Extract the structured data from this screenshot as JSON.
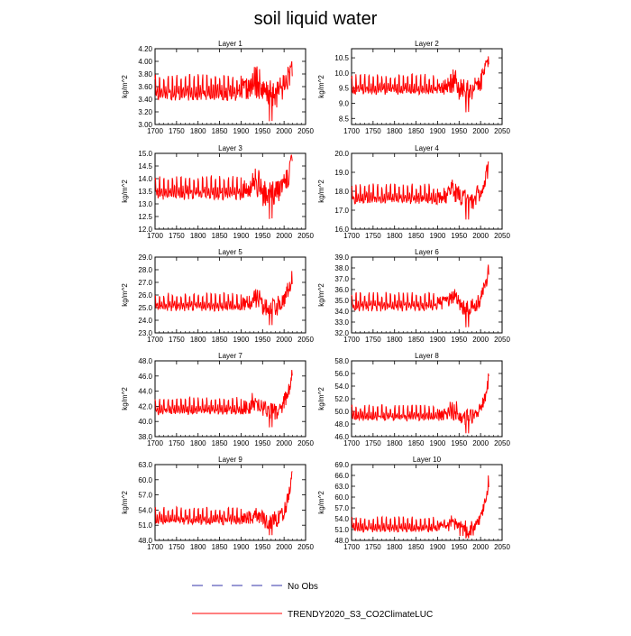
{
  "title": "soil liquid water",
  "legend": [
    {
      "label": "No Obs",
      "color": "#3333aa",
      "style": "dashed"
    },
    {
      "label": "TRENDY2020_S3_CO2ClimateLUC",
      "color": "#ff0000",
      "style": "solid"
    }
  ],
  "colors": {
    "series": "#ff0000",
    "axis": "#000000"
  },
  "chart_data": [
    {
      "type": "line",
      "title": "Layer 1",
      "ylabel": "kg/m^2",
      "xlim": [
        1700,
        2050
      ],
      "xticks": [
        1700,
        1750,
        1800,
        1850,
        1900,
        1950,
        2000,
        2050
      ],
      "ylim": [
        3.0,
        4.2
      ],
      "yticks": [
        "3.00",
        "3.20",
        "3.40",
        "3.60",
        "3.80",
        "4.00",
        "4.20"
      ],
      "series": [
        {
          "name": "TRENDY2020_S3_CO2ClimateLUC",
          "base": 3.55,
          "amp": 0.22,
          "recent_rise": 0.45,
          "min_dip": 3.05
        }
      ]
    },
    {
      "type": "line",
      "title": "Layer 2",
      "ylabel": "kg/m^2",
      "xlim": [
        1700,
        2050
      ],
      "xticks": [
        1700,
        1750,
        1800,
        1850,
        1900,
        1950,
        2000,
        2050
      ],
      "ylim": [
        8.3,
        10.8
      ],
      "yticks": [
        "8.5",
        "9.0",
        "9.5",
        "10.0",
        "10.5"
      ],
      "series": [
        {
          "name": "TRENDY2020_S3_CO2ClimateLUC",
          "base": 9.55,
          "amp": 0.35,
          "recent_rise": 1.0,
          "min_dip": 8.7
        }
      ]
    },
    {
      "type": "line",
      "title": "Layer 3",
      "ylabel": "kg/m^2",
      "xlim": [
        1700,
        2050
      ],
      "xticks": [
        1700,
        1750,
        1800,
        1850,
        1900,
        1950,
        2000,
        2050
      ],
      "ylim": [
        12.0,
        15.0
      ],
      "yticks": [
        "12.0",
        "12.5",
        "13.0",
        "13.5",
        "14.0",
        "14.5",
        "15.0"
      ],
      "series": [
        {
          "name": "TRENDY2020_S3_CO2ClimateLUC",
          "base": 13.55,
          "amp": 0.5,
          "recent_rise": 1.3,
          "min_dip": 12.4
        }
      ]
    },
    {
      "type": "line",
      "title": "Layer 4",
      "ylabel": "kg/m^2",
      "xlim": [
        1700,
        2050
      ],
      "xticks": [
        1700,
        1750,
        1800,
        1850,
        1900,
        1950,
        2000,
        2050
      ],
      "ylim": [
        16.0,
        20.0
      ],
      "yticks": [
        "16.0",
        "17.0",
        "18.0",
        "19.0",
        "20.0"
      ],
      "series": [
        {
          "name": "TRENDY2020_S3_CO2ClimateLUC",
          "base": 17.75,
          "amp": 0.55,
          "recent_rise": 1.8,
          "min_dip": 16.5
        }
      ]
    },
    {
      "type": "line",
      "title": "Layer 5",
      "ylabel": "kg/m^2",
      "xlim": [
        1700,
        2050
      ],
      "xticks": [
        1700,
        1750,
        1800,
        1850,
        1900,
        1950,
        2000,
        2050
      ],
      "ylim": [
        23.0,
        29.0
      ],
      "yticks": [
        "23.0",
        "24.0",
        "25.0",
        "26.0",
        "27.0",
        "28.0",
        "29.0"
      ],
      "series": [
        {
          "name": "TRENDY2020_S3_CO2ClimateLUC",
          "base": 25.3,
          "amp": 0.75,
          "recent_rise": 2.6,
          "min_dip": 23.6
        }
      ]
    },
    {
      "type": "line",
      "title": "Layer 6",
      "ylabel": "kg/m^2",
      "xlim": [
        1700,
        2050
      ],
      "xticks": [
        1700,
        1750,
        1800,
        1850,
        1900,
        1950,
        2000,
        2050
      ],
      "ylim": [
        32.0,
        39.0
      ],
      "yticks": [
        "32.0",
        "33.0",
        "34.0",
        "35.0",
        "36.0",
        "37.0",
        "38.0",
        "39.0"
      ],
      "series": [
        {
          "name": "TRENDY2020_S3_CO2ClimateLUC",
          "base": 34.7,
          "amp": 0.9,
          "recent_rise": 3.6,
          "min_dip": 32.5
        }
      ]
    },
    {
      "type": "line",
      "title": "Layer 7",
      "ylabel": "kg/m^2",
      "xlim": [
        1700,
        2050
      ],
      "xticks": [
        1700,
        1750,
        1800,
        1850,
        1900,
        1950,
        2000,
        2050
      ],
      "ylim": [
        38.0,
        48.0
      ],
      "yticks": [
        "38.0",
        "40.0",
        "42.0",
        "44.0",
        "46.0",
        "48.0"
      ],
      "series": [
        {
          "name": "TRENDY2020_S3_CO2ClimateLUC",
          "base": 41.8,
          "amp": 1.2,
          "recent_rise": 5.0,
          "min_dip": 39.2
        }
      ]
    },
    {
      "type": "line",
      "title": "Layer 8",
      "ylabel": "kg/m^2",
      "xlim": [
        1700,
        2050
      ],
      "xticks": [
        1700,
        1750,
        1800,
        1850,
        1900,
        1950,
        2000,
        2050
      ],
      "ylim": [
        46.0,
        58.0
      ],
      "yticks": [
        "46.0",
        "48.0",
        "50.0",
        "52.0",
        "54.0",
        "56.0",
        "58.0"
      ],
      "series": [
        {
          "name": "TRENDY2020_S3_CO2ClimateLUC",
          "base": 49.5,
          "amp": 1.3,
          "recent_rise": 6.5,
          "min_dip": 46.5
        }
      ]
    },
    {
      "type": "line",
      "title": "Layer 9",
      "ylabel": "kg/m^2",
      "xlim": [
        1700,
        2050
      ],
      "xticks": [
        1700,
        1750,
        1800,
        1850,
        1900,
        1950,
        2000,
        2050
      ],
      "ylim": [
        48.0,
        63.0
      ],
      "yticks": [
        "48.0",
        "51.0",
        "54.0",
        "57.0",
        "60.0",
        "63.0"
      ],
      "series": [
        {
          "name": "TRENDY2020_S3_CO2ClimateLUC",
          "base": 52.5,
          "amp": 1.8,
          "recent_rise": 9.0,
          "min_dip": 49.0
        }
      ]
    },
    {
      "type": "line",
      "title": "Layer 10",
      "ylabel": "kg/m^2",
      "xlim": [
        1700,
        2050
      ],
      "xticks": [
        1700,
        1750,
        1800,
        1850,
        1900,
        1950,
        2000,
        2050
      ],
      "ylim": [
        48.0,
        69.0
      ],
      "yticks": [
        "48.0",
        "51.0",
        "54.0",
        "57.0",
        "60.0",
        "63.0",
        "66.0",
        "69.0"
      ],
      "series": [
        {
          "name": "TRENDY2020_S3_CO2ClimateLUC",
          "base": 52.0,
          "amp": 2.2,
          "recent_rise": 14.0,
          "min_dip": 48.5
        }
      ]
    }
  ]
}
